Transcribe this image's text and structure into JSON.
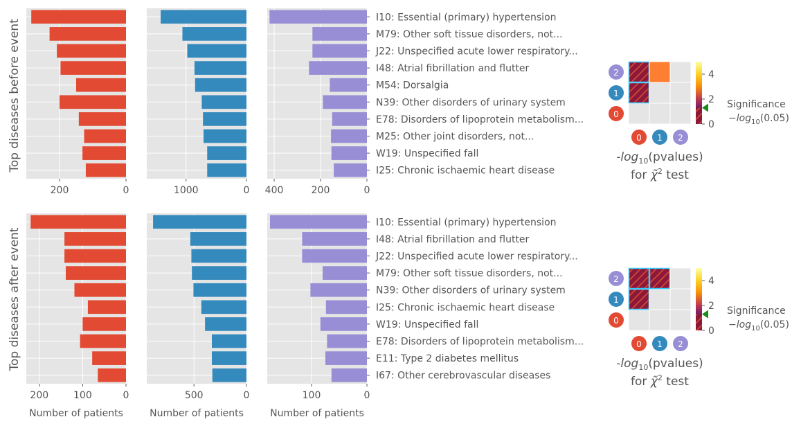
{
  "row_titles": [
    "Top diseases before event",
    "Top diseases after event"
  ],
  "xlabel": "Number of patients",
  "heatmap_label": "-log10(pvalues) for χ̃² test",
  "colorbar": {
    "ticks": [
      "0",
      "2",
      "4"
    ],
    "label_line1": "Significance",
    "label_line2": "-log10(0.05)"
  },
  "colors": {
    "c0": "#E24A33",
    "c1": "#348ABD",
    "c2": "#988ED5",
    "panel_bg": "#E5E5E5",
    "grid": "#FFFFFF",
    "text": "#555555",
    "hatch_fill": "#8B1A3A",
    "cell_orange": "#FF7F32",
    "marker": "#1A8A1A",
    "hatch_edge": "#33CCFF"
  },
  "chart_data": [
    {
      "type": "bar",
      "orientation": "horizontal",
      "title": "Top diseases before event",
      "categories": [
        "I10: Essential (primary) hypertension",
        "M79: Other soft tissue disorders, not...",
        "J22: Unspecified acute lower respiratory...",
        "I48: Atrial fibrillation and flutter",
        "M54: Dorsalgia",
        "N39: Other disorders of urinary system",
        "E78: Disorders of lipoprotein metabolism...",
        "M25: Other joint disorders, not...",
        "W19: Unspecified fall",
        "I25: Chronic ischaemic heart disease"
      ],
      "series": [
        {
          "values": [
            285,
            230,
            208,
            197,
            150,
            200,
            142,
            126,
            131,
            121
          ],
          "xlim": [
            300,
            0
          ],
          "xticks": [
            200,
            0
          ],
          "color": "#E24A33"
        },
        {
          "values": [
            1420,
            1060,
            980,
            860,
            850,
            740,
            720,
            710,
            650,
            650
          ],
          "xlim": [
            1650,
            0
          ],
          "xticks": [
            1000,
            0
          ],
          "color": "#348ABD"
        },
        {
          "values": [
            420,
            235,
            235,
            250,
            160,
            190,
            150,
            155,
            153,
            143
          ],
          "xlim": [
            430,
            0
          ],
          "xticks": [
            400,
            200,
            0
          ],
          "color": "#988ED5"
        }
      ]
    },
    {
      "type": "bar",
      "orientation": "horizontal",
      "title": "Top diseases after event",
      "categories": [
        "I10: Essential (primary) hypertension",
        "I48: Atrial fibrillation and flutter",
        "J22: Unspecified acute lower respiratory...",
        "M79: Other soft tissue disorders, not...",
        "N39: Other disorders of urinary system",
        "I25: Chronic ischaemic heart disease",
        "W19: Unspecified fall",
        "E78: Disorders of lipoprotein metabolism...",
        "E11: Type 2 diabetes mellitus",
        "I67: Other cerebrovascular diseases"
      ],
      "series": [
        {
          "values": [
            220,
            142,
            142,
            139,
            119,
            88,
            100,
            106,
            78,
            65
          ],
          "xlim": [
            230,
            0
          ],
          "xticks": [
            200,
            100,
            0
          ],
          "color": "#E24A33"
        },
        {
          "values": [
            890,
            535,
            525,
            520,
            505,
            430,
            395,
            330,
            330,
            325
          ],
          "xlim": [
            950,
            0
          ],
          "xticks": [
            500,
            0
          ],
          "color": "#348ABD"
        },
        {
          "values": [
            175,
            117,
            117,
            80,
            102,
            74,
            84,
            72,
            75,
            64
          ],
          "xlim": [
            180,
            0
          ],
          "xticks": [
            100,
            0
          ],
          "color": "#988ED5"
        }
      ]
    },
    {
      "type": "heatmap",
      "title": "-log10(pvalues) for χ̃² test",
      "x_labels": [
        "0",
        "1",
        "2"
      ],
      "y_labels": [
        "0",
        "1",
        "2"
      ],
      "cells": [
        [
          "",
          "",
          ""
        ],
        [
          "hatched",
          "",
          ""
        ],
        [
          "hatched",
          "orange",
          ""
        ]
      ],
      "colorbar_range": [
        0,
        5
      ],
      "threshold": 1.3
    },
    {
      "type": "heatmap",
      "title": "-log10(pvalues) for χ̃² test",
      "x_labels": [
        "0",
        "1",
        "2"
      ],
      "y_labels": [
        "0",
        "1",
        "2"
      ],
      "cells": [
        [
          "",
          "",
          ""
        ],
        [
          "hatched",
          "",
          ""
        ],
        [
          "hatched",
          "hatched",
          ""
        ]
      ],
      "colorbar_range": [
        0,
        5
      ],
      "threshold": 1.3
    }
  ]
}
